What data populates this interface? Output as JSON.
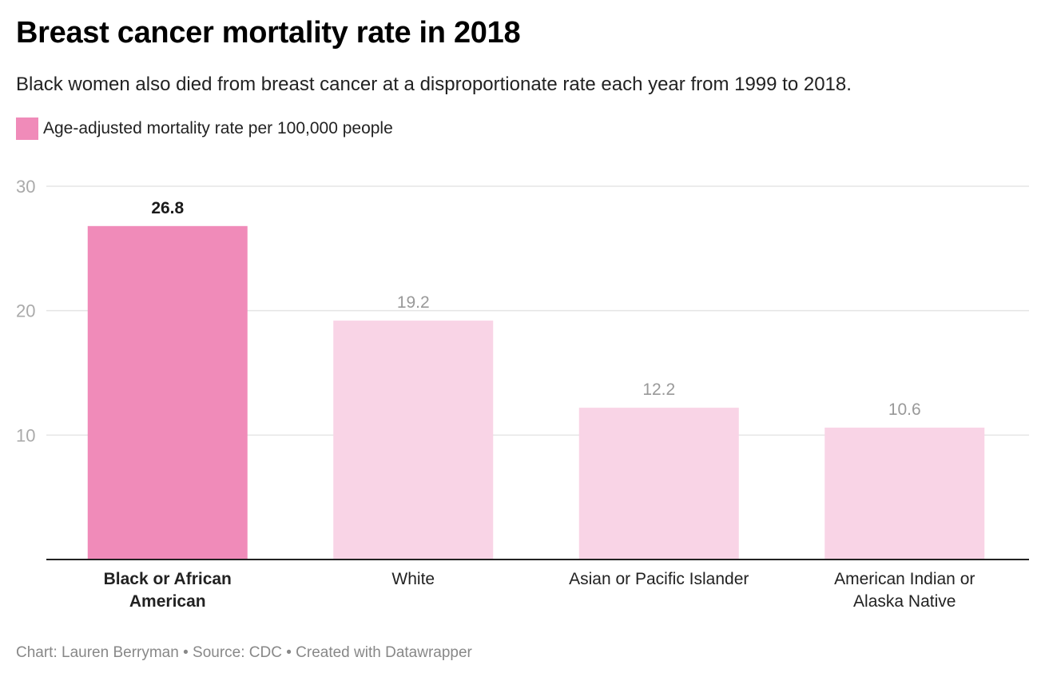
{
  "header": {
    "title": "Breast cancer mortality rate in 2018",
    "subtitle": "Black women also died from breast cancer at a disproportionate rate each year from 1999 to 2018."
  },
  "legend": {
    "label": "Age-adjusted mortality rate per 100,000 people",
    "color": "#f08bb9"
  },
  "footer": {
    "text": "Chart: Lauren Berryman • Source: CDC • Created with Datawrapper"
  },
  "chart_data": {
    "type": "bar",
    "title": "Breast cancer mortality rate in 2018",
    "subtitle": "Black women also died from breast cancer at a disproportionate rate each year from 1999 to 2018.",
    "xlabel": "",
    "ylabel": "",
    "categories": [
      [
        "Black or African",
        "American"
      ],
      [
        "White"
      ],
      [
        "Asian or Pacific Islander"
      ],
      [
        "American Indian or",
        "Alaska Native"
      ]
    ],
    "series": [
      {
        "name": "Age-adjusted mortality rate per 100,000 people",
        "values": [
          26.8,
          19.2,
          12.2,
          10.6
        ]
      }
    ],
    "value_labels": [
      "26.8",
      "19.2",
      "12.2",
      "10.6"
    ],
    "highlight_index": 0,
    "colors": {
      "highlight": "#f08bb9",
      "default": "#f9d4e6",
      "highlight_label": "#1a1a1a",
      "default_label": "#999999",
      "gridline": "#e5e5e5",
      "axis": "#222222",
      "tick_label": "#aaaaaa"
    },
    "ylim": [
      0,
      30
    ],
    "yticks": [
      10,
      20,
      30
    ],
    "grid": true,
    "legend_position": "top-left"
  }
}
